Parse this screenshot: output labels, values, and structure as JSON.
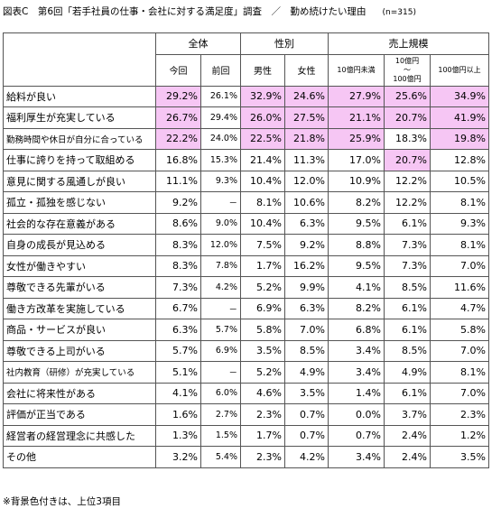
{
  "title": "図表C　第6回「若手社員の仕事・会社に対する満足度」調査　／　勤め続けたい理由",
  "note": "(n=315)",
  "footnote": "※背景色付きは、上位3項目",
  "highlight_color": "#f6c6f4",
  "table": {
    "groups": [
      {
        "label": "全体",
        "span": 2
      },
      {
        "label": "性別",
        "span": 2
      },
      {
        "label": "売上規模",
        "span": 3
      }
    ],
    "columns": [
      "今回",
      "前回",
      "男性",
      "女性",
      "10億円未満",
      "10億円\n～\n100億円",
      "100億円以上"
    ],
    "rows": [
      {
        "label": "給料が良い",
        "cells": [
          "29.2%",
          "26.1%",
          "32.9%",
          "24.6%",
          "27.9%",
          "25.6%",
          "34.9%"
        ],
        "top3": [
          0,
          2,
          3,
          4,
          5,
          6
        ]
      },
      {
        "label": "福利厚生が充実している",
        "cells": [
          "26.7%",
          "29.4%",
          "26.0%",
          "27.5%",
          "21.1%",
          "20.7%",
          "41.9%"
        ],
        "top3": [
          0,
          2,
          3,
          4,
          5,
          6
        ]
      },
      {
        "label": "勤務時間や休日が自分に合っている",
        "cells": [
          "22.2%",
          "24.0%",
          "22.5%",
          "21.8%",
          "25.9%",
          "18.3%",
          "19.8%"
        ],
        "top3": [
          0,
          2,
          3,
          4,
          6
        ]
      },
      {
        "label": "仕事に誇りを持って取組める",
        "cells": [
          "16.8%",
          "15.3%",
          "21.4%",
          "11.3%",
          "17.0%",
          "20.7%",
          "12.8%"
        ],
        "top3": [
          5
        ]
      },
      {
        "label": "意見に関する風通しが良い",
        "cells": [
          "11.1%",
          "9.3%",
          "10.4%",
          "12.0%",
          "10.9%",
          "12.2%",
          "10.5%"
        ],
        "top3": []
      },
      {
        "label": "孤立・孤独を感じない",
        "cells": [
          "9.2%",
          "－",
          "8.1%",
          "10.6%",
          "8.2%",
          "12.2%",
          "8.1%"
        ],
        "top3": []
      },
      {
        "label": "社会的な存在意義がある",
        "cells": [
          "8.6%",
          "9.0%",
          "10.4%",
          "6.3%",
          "9.5%",
          "6.1%",
          "9.3%"
        ],
        "top3": []
      },
      {
        "label": "自身の成長が見込める",
        "cells": [
          "8.3%",
          "12.0%",
          "7.5%",
          "9.2%",
          "8.8%",
          "7.3%",
          "8.1%"
        ],
        "top3": []
      },
      {
        "label": "女性が働きやすい",
        "cells": [
          "8.3%",
          "7.8%",
          "1.7%",
          "16.2%",
          "9.5%",
          "7.3%",
          "7.0%"
        ],
        "top3": []
      },
      {
        "label": "尊敬できる先輩がいる",
        "cells": [
          "7.3%",
          "4.2%",
          "5.2%",
          "9.9%",
          "4.1%",
          "8.5%",
          "11.6%"
        ],
        "top3": []
      },
      {
        "label": "働き方改革を実施している",
        "cells": [
          "6.7%",
          "－",
          "6.9%",
          "6.3%",
          "8.2%",
          "6.1%",
          "4.7%"
        ],
        "top3": []
      },
      {
        "label": "商品・サービスが良い",
        "cells": [
          "6.3%",
          "5.7%",
          "5.8%",
          "7.0%",
          "6.8%",
          "6.1%",
          "5.8%"
        ],
        "top3": []
      },
      {
        "label": "尊敬できる上司がいる",
        "cells": [
          "5.7%",
          "6.9%",
          "3.5%",
          "8.5%",
          "3.4%",
          "8.5%",
          "7.0%"
        ],
        "top3": []
      },
      {
        "label": "社内教育（研修）が充実している",
        "cells": [
          "5.1%",
          "－",
          "5.2%",
          "4.9%",
          "3.4%",
          "4.9%",
          "8.1%"
        ],
        "top3": []
      },
      {
        "label": "会社に将来性がある",
        "cells": [
          "4.1%",
          "6.0%",
          "4.6%",
          "3.5%",
          "1.4%",
          "6.1%",
          "7.0%"
        ],
        "top3": []
      },
      {
        "label": "評価が正当である",
        "cells": [
          "1.6%",
          "2.7%",
          "2.3%",
          "0.7%",
          "0.0%",
          "3.7%",
          "2.3%"
        ],
        "top3": []
      },
      {
        "label": "経営者の経営理念に共感した",
        "cells": [
          "1.3%",
          "1.5%",
          "1.7%",
          "0.7%",
          "0.7%",
          "2.4%",
          "1.2%"
        ],
        "top3": []
      },
      {
        "label": "その他",
        "cells": [
          "3.2%",
          "5.4%",
          "2.3%",
          "4.2%",
          "3.4%",
          "2.4%",
          "3.5%"
        ],
        "top3": []
      }
    ]
  }
}
